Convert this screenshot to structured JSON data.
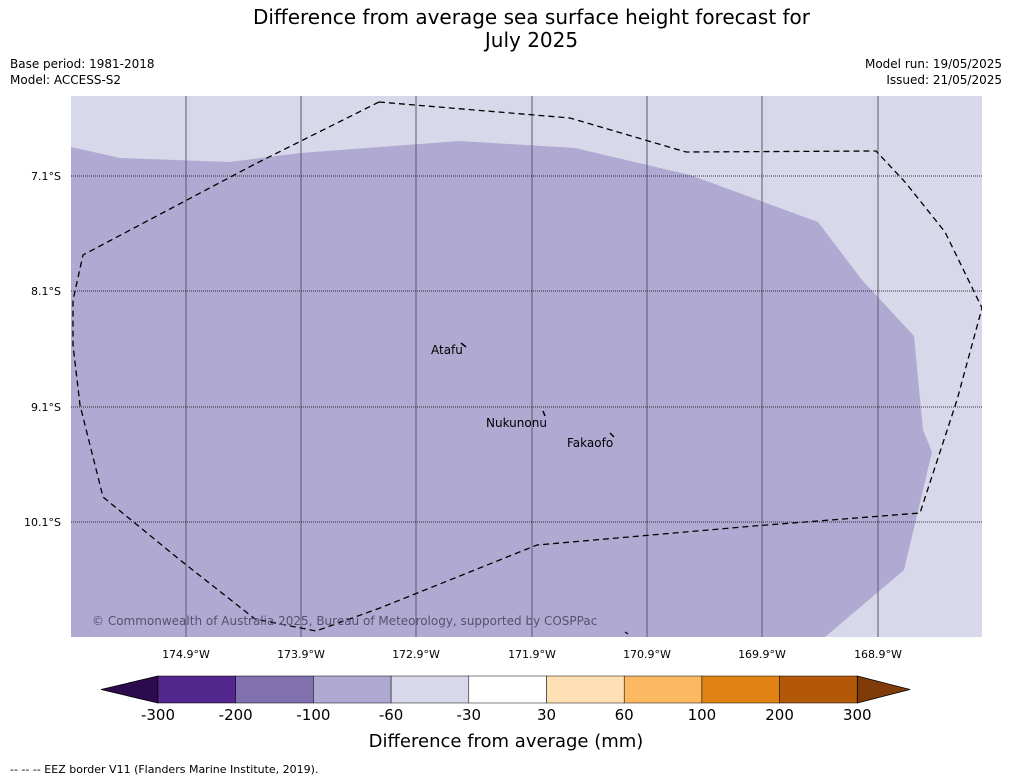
{
  "title": {
    "line1": "Difference from average sea surface height forecast for",
    "line2": "July 2025"
  },
  "meta": {
    "base_period": "Base period: 1981-2018",
    "model": "Model: ACCESS-S2",
    "model_run": "Model run: 19/05/2025",
    "issued": "Issued: 21/05/2025"
  },
  "map": {
    "latitude_ticks": [
      "7.1°S",
      "8.1°S",
      "9.1°S",
      "10.1°S"
    ],
    "longitude_ticks": [
      "174.9°W",
      "173.9°W",
      "172.9°W",
      "171.9°W",
      "170.9°W",
      "169.9°W",
      "168.9°W"
    ],
    "places": [
      {
        "name": "Atafu"
      },
      {
        "name": "Nukunonu"
      },
      {
        "name": "Fakaofo"
      }
    ],
    "shading": {
      "outer_class_color": "#d7d8e9",
      "inner_class_color": "#b0aad2"
    },
    "copyright": "© Commonwealth of Australia 2025, Bureau of Meteorology, supported by COSPPac"
  },
  "legend": {
    "title": "Difference from average (mm)",
    "tick_labels": [
      "-300",
      "-200",
      "-100",
      "-60",
      "-30",
      "30",
      "60",
      "100",
      "200",
      "300"
    ],
    "colors": [
      "#2d0a4e",
      "#54278f",
      "#8070ad",
      "#b0aad2",
      "#d7d8e9",
      "#ffffff",
      "#ffdfb4",
      "#fdb862",
      "#e08214",
      "#b35806",
      "#7f3b08"
    ]
  },
  "footnote": "--  --  -- EEZ border V11 (Flanders Marine Institute, 2019)."
}
